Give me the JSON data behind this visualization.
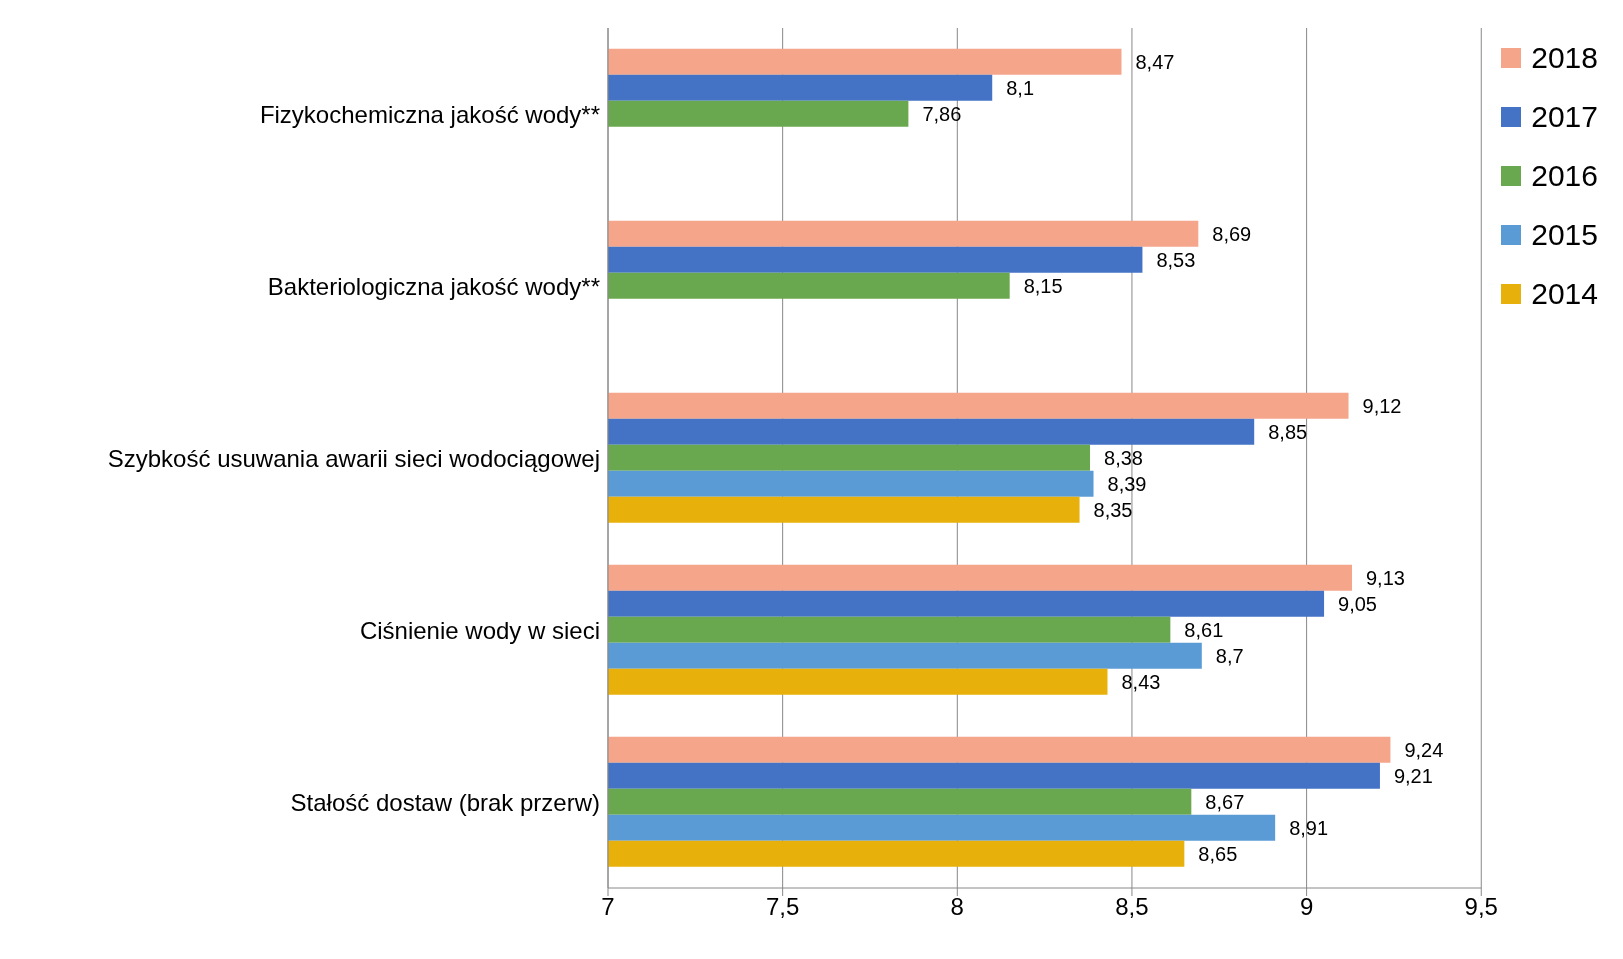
{
  "chart_data": {
    "type": "bar",
    "orientation": "horizontal",
    "categories": [
      "Fizykochemiczna jakość wody**",
      "Bakteriologiczna jakość wody**",
      "Szybkość usuwania awarii sieci wodociągowej",
      "Ciśnienie wody w sieci",
      "Stałość dostaw (brak przerw)"
    ],
    "series": [
      {
        "name": "2018",
        "color": "#f4a58a",
        "values": [
          8.47,
          8.69,
          9.12,
          9.13,
          9.24
        ],
        "value_labels": [
          "8,47",
          "8,69",
          "9,12",
          "9,13",
          "9,24"
        ]
      },
      {
        "name": "2017",
        "color": "#4472c4",
        "values": [
          8.1,
          8.53,
          8.85,
          9.05,
          9.21
        ],
        "value_labels": [
          "8,1",
          "8,53",
          "8,85",
          "9,05",
          "9,21"
        ]
      },
      {
        "name": "2016",
        "color": "#6aa84f",
        "values": [
          7.86,
          8.15,
          8.38,
          8.61,
          8.67
        ],
        "value_labels": [
          "7,86",
          "8,15",
          "8,38",
          "8,61",
          "8,67"
        ]
      },
      {
        "name": "2015",
        "color": "#5b9bd5",
        "values": [
          null,
          null,
          8.39,
          8.7,
          8.91
        ],
        "value_labels": [
          null,
          null,
          "8,39",
          "8,7",
          "8,91"
        ]
      },
      {
        "name": "2014",
        "color": "#e8b00a",
        "values": [
          null,
          null,
          8.35,
          8.43,
          8.65
        ],
        "value_labels": [
          null,
          null,
          "8,35",
          "8,43",
          "8,65"
        ]
      }
    ],
    "xlim": [
      7,
      9.5
    ],
    "xticks": [
      7,
      {
        "value": 7.5,
        "label": "7,5"
      },
      8,
      {
        "value": 8.5,
        "label": "8,5"
      },
      9,
      {
        "value": 9.5,
        "label": "9,5"
      }
    ],
    "grid": "x",
    "legend": "right"
  }
}
